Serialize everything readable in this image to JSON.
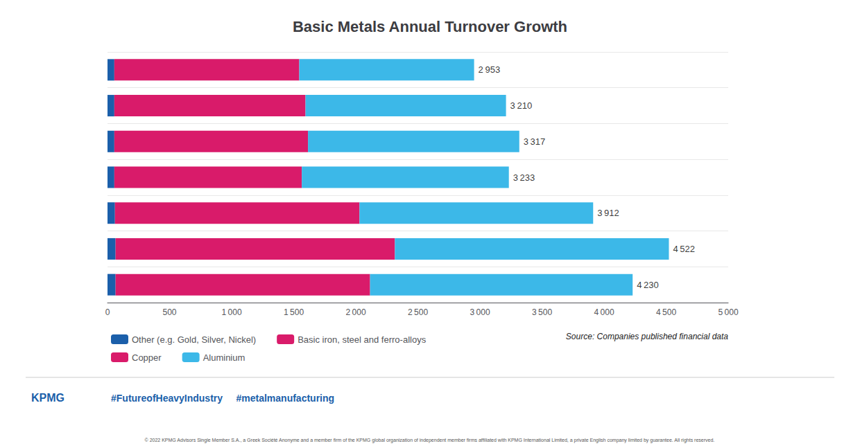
{
  "chart_data": {
    "type": "bar",
    "orientation": "horizontal",
    "stacked": true,
    "title": "Basic Metals Annual Turnover Growth",
    "categories": [
      null,
      null,
      null,
      null,
      null,
      null,
      null
    ],
    "series": [
      {
        "name": "Other (e.g. Gold, Silver, Nickel)",
        "color": "#1B5FAA",
        "values": [
          55,
          55,
          55,
          55,
          60,
          65,
          65
        ]
      },
      {
        "name": "Basic iron, steel and ferro-alloys",
        "color": "#D91B6A",
        "values": [
          1490,
          1540,
          1560,
          1510,
          1970,
          2250,
          2050
        ]
      },
      {
        "name": "Copper",
        "color": "#D91B6A",
        "values": [
          0,
          0,
          0,
          0,
          0,
          0,
          0
        ]
      },
      {
        "name": "Aluminium",
        "color": "#3CB8E8",
        "values": [
          1408,
          1615,
          1702,
          1668,
          1882,
          2207,
          2115
        ]
      }
    ],
    "totals": [
      2953,
      3210,
      3317,
      3233,
      3912,
      4522,
      4230
    ],
    "total_labels": [
      "2 953",
      "3 210",
      "3 317",
      "3 233",
      "3 912",
      "4 522",
      "4 230"
    ],
    "xlim": [
      0,
      5000
    ],
    "xticks": [
      0,
      500,
      {
        "value": 1000,
        "label": "1 000"
      },
      {
        "value": 1500,
        "label": "1 500"
      },
      {
        "value": 2000,
        "label": "2 000"
      },
      {
        "value": 2500,
        "label": "2 500"
      },
      {
        "value": 3000,
        "label": "3 000"
      },
      {
        "value": 3500,
        "label": "3 500"
      },
      {
        "value": 4000,
        "label": "4 000"
      },
      {
        "value": 4500,
        "label": "4 500"
      },
      {
        "value": 5000,
        "label": "5 000"
      }
    ],
    "grid": true,
    "legend": "lower left",
    "tick_labels": "x",
    "annotations": [
      "Source: Companies published financial data",
      "#FutureofHeavyIndustry     #metalmanufacturing",
      "KPMG",
      "© 2022 KPMG Advisors Single Member S.A., a Greek Société Anonyme and a member firm of the KPMG global organization of independent member firms affiliated with KPMG International Limited, a private English company limited by guarantee. All rights reserved."
    ]
  }
}
